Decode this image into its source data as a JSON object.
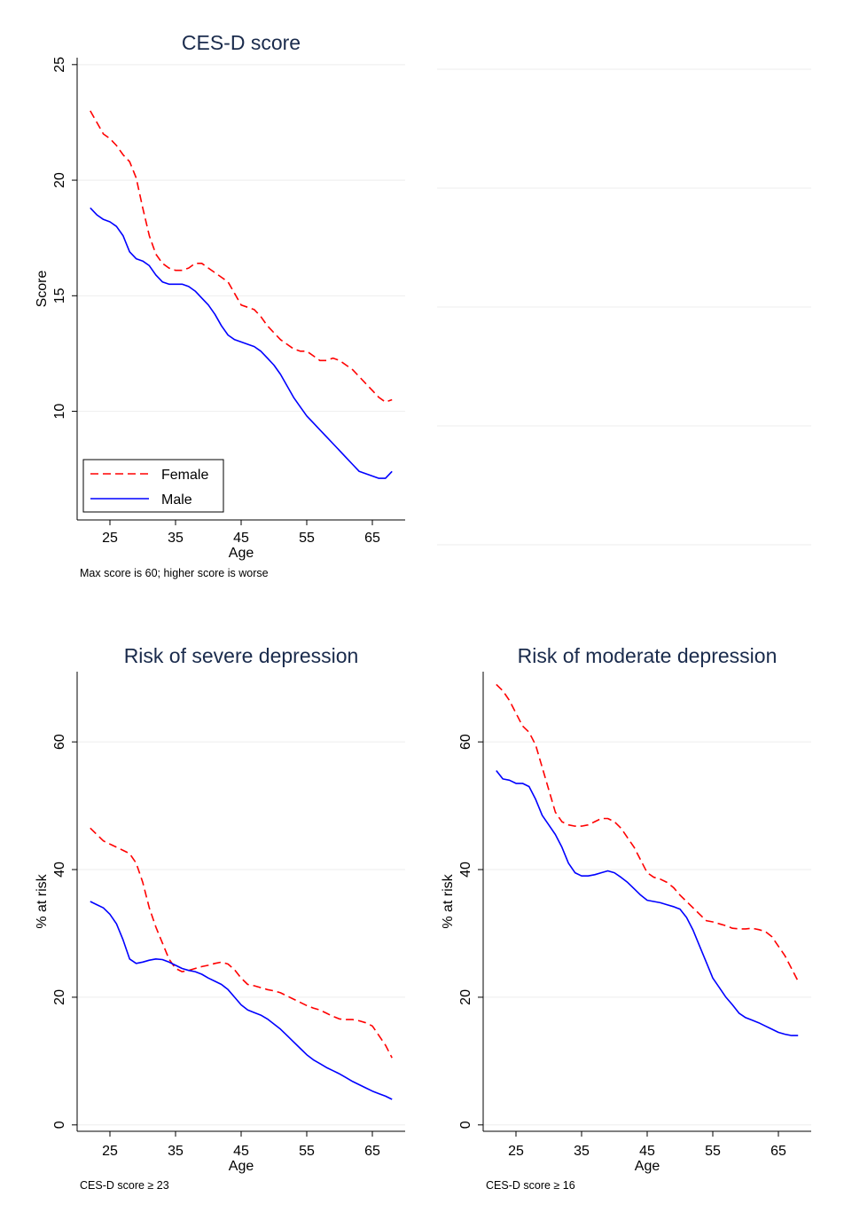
{
  "chart_data": [
    {
      "type": "line",
      "title": "CES-D score",
      "xlabel": "Age",
      "ylabel": "Score",
      "note": "Max score is 60; higher score is worse",
      "xlim": [
        20,
        70
      ],
      "ylim": [
        5.3,
        25.3
      ],
      "xticks": [
        25,
        35,
        45,
        55,
        65
      ],
      "yticks": [
        10,
        15,
        20,
        25
      ],
      "grid": true,
      "legend": {
        "placement": "bottom-left",
        "entries": [
          "Female",
          "Male"
        ]
      },
      "series": [
        {
          "name": "Female",
          "color": "#ff0000",
          "style": "dashed",
          "x": [
            22,
            23,
            24,
            25,
            26,
            27,
            28,
            29,
            30,
            31,
            32,
            33,
            34,
            35,
            36,
            37,
            38,
            39,
            40,
            41,
            42,
            43,
            44,
            45,
            46,
            47,
            48,
            49,
            50,
            51,
            52,
            53,
            54,
            55,
            56,
            57,
            58,
            59,
            60,
            61,
            62,
            63,
            64,
            65,
            66,
            67,
            68
          ],
          "y": [
            23.0,
            22.5,
            22.0,
            21.8,
            21.5,
            21.1,
            20.8,
            20.1,
            18.8,
            17.6,
            16.8,
            16.4,
            16.2,
            16.1,
            16.1,
            16.2,
            16.4,
            16.4,
            16.2,
            16.0,
            15.8,
            15.6,
            15.1,
            14.6,
            14.5,
            14.4,
            14.1,
            13.7,
            13.4,
            13.1,
            12.9,
            12.7,
            12.6,
            12.6,
            12.4,
            12.2,
            12.2,
            12.3,
            12.2,
            12.0,
            11.8,
            11.5,
            11.2,
            10.9,
            10.6,
            10.4,
            10.5
          ]
        },
        {
          "name": "Male",
          "color": "#0000ff",
          "style": "solid",
          "x": [
            22,
            23,
            24,
            25,
            26,
            27,
            28,
            29,
            30,
            31,
            32,
            33,
            34,
            35,
            36,
            37,
            38,
            39,
            40,
            41,
            42,
            43,
            44,
            45,
            46,
            47,
            48,
            49,
            50,
            51,
            52,
            53,
            54,
            55,
            56,
            57,
            58,
            59,
            60,
            61,
            62,
            63,
            64,
            65,
            66,
            67,
            68
          ],
          "y": [
            18.8,
            18.5,
            18.3,
            18.2,
            18.0,
            17.6,
            16.9,
            16.6,
            16.5,
            16.3,
            15.9,
            15.6,
            15.5,
            15.5,
            15.5,
            15.4,
            15.2,
            14.9,
            14.6,
            14.2,
            13.7,
            13.3,
            13.1,
            13.0,
            12.9,
            12.8,
            12.6,
            12.3,
            12.0,
            11.6,
            11.1,
            10.6,
            10.2,
            9.8,
            9.5,
            9.2,
            8.9,
            8.6,
            8.3,
            8.0,
            7.7,
            7.4,
            7.3,
            7.2,
            7.1,
            7.1,
            7.4
          ]
        }
      ]
    },
    {
      "type": "line",
      "title": "Risk of severe depression",
      "xlabel": "Age",
      "ylabel": "% at risk",
      "note": "CES-D score ≥ 23",
      "xlim": [
        20,
        70
      ],
      "ylim": [
        -1,
        71
      ],
      "xticks": [
        25,
        35,
        45,
        55,
        65
      ],
      "yticks": [
        0,
        20,
        40,
        60
      ],
      "grid": true,
      "series": [
        {
          "name": "Female",
          "color": "#ff0000",
          "style": "dashed",
          "x": [
            22,
            23,
            24,
            25,
            26,
            27,
            28,
            29,
            30,
            31,
            32,
            33,
            34,
            35,
            36,
            37,
            38,
            39,
            40,
            41,
            42,
            43,
            44,
            45,
            46,
            47,
            48,
            49,
            50,
            51,
            52,
            53,
            54,
            55,
            56,
            57,
            58,
            59,
            60,
            61,
            62,
            63,
            64,
            65,
            66,
            67,
            68
          ],
          "y": [
            46.5,
            45.5,
            44.5,
            44.0,
            43.5,
            43.0,
            42.5,
            41.0,
            38.0,
            34.0,
            31.0,
            28.5,
            26.0,
            24.5,
            24.0,
            24.2,
            24.5,
            24.8,
            25.0,
            25.3,
            25.5,
            25.2,
            24.3,
            23.0,
            22.0,
            21.8,
            21.5,
            21.2,
            21.0,
            20.7,
            20.2,
            19.7,
            19.2,
            18.7,
            18.3,
            18.0,
            17.5,
            17.0,
            16.6,
            16.5,
            16.5,
            16.3,
            16.0,
            15.5,
            14.0,
            12.5,
            10.5
          ]
        },
        {
          "name": "Male",
          "color": "#0000ff",
          "style": "solid",
          "x": [
            22,
            23,
            24,
            25,
            26,
            27,
            28,
            29,
            30,
            31,
            32,
            33,
            34,
            35,
            36,
            37,
            38,
            39,
            40,
            41,
            42,
            43,
            44,
            45,
            46,
            47,
            48,
            49,
            50,
            51,
            52,
            53,
            54,
            55,
            56,
            57,
            58,
            59,
            60,
            61,
            62,
            63,
            64,
            65,
            66,
            67,
            68
          ],
          "y": [
            35.0,
            34.5,
            34.0,
            33.0,
            31.5,
            29.0,
            26.0,
            25.3,
            25.5,
            25.8,
            26.0,
            25.9,
            25.5,
            25.0,
            24.5,
            24.2,
            24.0,
            23.6,
            23.0,
            22.5,
            22.0,
            21.2,
            20.0,
            18.8,
            18.0,
            17.6,
            17.2,
            16.6,
            15.8,
            15.0,
            14.0,
            13.0,
            12.0,
            11.0,
            10.2,
            9.6,
            9.0,
            8.5,
            8.0,
            7.4,
            6.8,
            6.3,
            5.8,
            5.3,
            4.9,
            4.5,
            4.0
          ]
        }
      ]
    },
    {
      "type": "line",
      "title": "Risk of moderate depression",
      "xlabel": "Age",
      "ylabel": "% at risk",
      "note": "CES-D score ≥ 16",
      "xlim": [
        20,
        70
      ],
      "ylim": [
        -1,
        71
      ],
      "xticks": [
        25,
        35,
        45,
        55,
        65
      ],
      "yticks": [
        0,
        20,
        40,
        60
      ],
      "grid": true,
      "series": [
        {
          "name": "Female",
          "color": "#ff0000",
          "style": "dashed",
          "x": [
            22,
            23,
            24,
            25,
            26,
            27,
            28,
            29,
            30,
            31,
            32,
            33,
            34,
            35,
            36,
            37,
            38,
            39,
            40,
            41,
            42,
            43,
            44,
            45,
            46,
            47,
            48,
            49,
            50,
            51,
            52,
            53,
            54,
            55,
            56,
            57,
            58,
            59,
            60,
            61,
            62,
            63,
            64,
            65,
            66,
            67,
            68
          ],
          "y": [
            69.0,
            68.0,
            66.5,
            64.5,
            62.5,
            61.5,
            59.5,
            56.0,
            52.5,
            49.0,
            47.5,
            47.0,
            46.8,
            46.8,
            47.0,
            47.5,
            48.0,
            48.0,
            47.5,
            46.5,
            45.0,
            43.5,
            41.5,
            39.5,
            38.8,
            38.5,
            38.0,
            37.2,
            36.0,
            35.0,
            34.0,
            33.0,
            32.0,
            31.8,
            31.5,
            31.2,
            30.8,
            30.7,
            30.7,
            30.8,
            30.6,
            30.3,
            29.5,
            28.0,
            26.5,
            24.5,
            22.5
          ]
        },
        {
          "name": "Male",
          "color": "#0000ff",
          "style": "solid",
          "x": [
            22,
            23,
            24,
            25,
            26,
            27,
            28,
            29,
            30,
            31,
            32,
            33,
            34,
            35,
            36,
            37,
            38,
            39,
            40,
            41,
            42,
            43,
            44,
            45,
            46,
            47,
            48,
            49,
            50,
            51,
            52,
            53,
            54,
            55,
            56,
            57,
            58,
            59,
            60,
            61,
            62,
            63,
            64,
            65,
            66,
            67,
            68
          ],
          "y": [
            55.5,
            54.2,
            54.0,
            53.5,
            53.5,
            53.0,
            51.0,
            48.5,
            47.0,
            45.5,
            43.5,
            41.0,
            39.5,
            39.0,
            39.0,
            39.2,
            39.5,
            39.8,
            39.5,
            38.8,
            38.0,
            37.0,
            36.0,
            35.2,
            35.0,
            34.8,
            34.5,
            34.2,
            33.8,
            32.5,
            30.5,
            28.0,
            25.5,
            23.0,
            21.5,
            20.0,
            18.8,
            17.5,
            16.8,
            16.4,
            16.0,
            15.5,
            15.0,
            14.5,
            14.2,
            14.0,
            14.0
          ]
        }
      ]
    }
  ]
}
